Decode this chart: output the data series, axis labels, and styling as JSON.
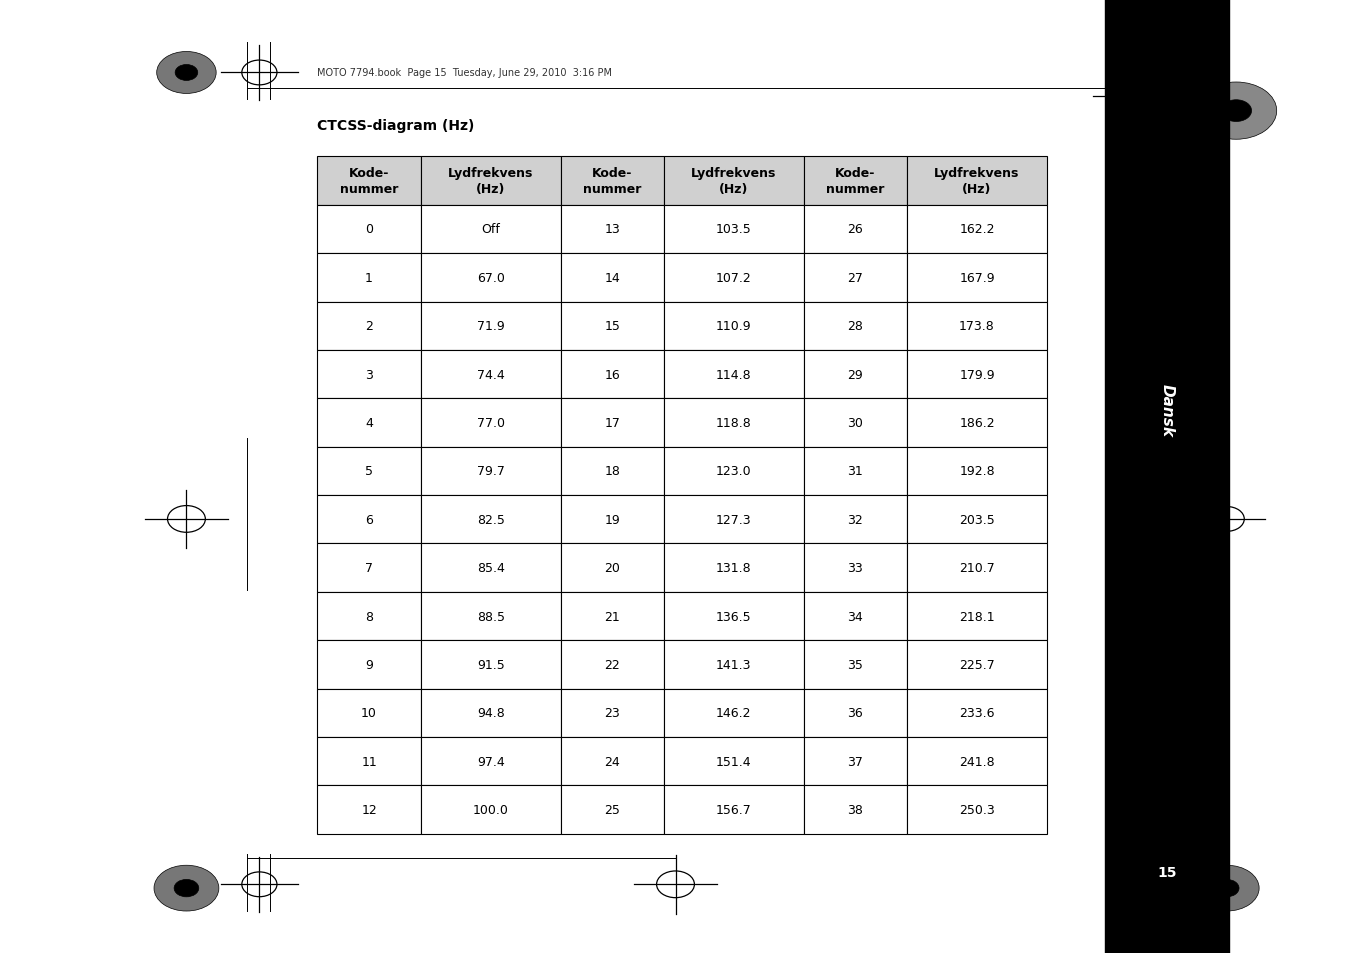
{
  "title": "CTCSS-diagram (Hz)",
  "header_line1": [
    "Kode-\nnummer",
    "Lydfrekvens\n(Hz)",
    "Kode-\nnummer",
    "Lydfrekvens\n(Hz)",
    "Kode-\nnummer",
    "Lydfrekvens\n(Hz)"
  ],
  "rows": [
    [
      "0",
      "Off",
      "13",
      "103.5",
      "26",
      "162.2"
    ],
    [
      "1",
      "67.0",
      "14",
      "107.2",
      "27",
      "167.9"
    ],
    [
      "2",
      "71.9",
      "15",
      "110.9",
      "28",
      "173.8"
    ],
    [
      "3",
      "74.4",
      "16",
      "114.8",
      "29",
      "179.9"
    ],
    [
      "4",
      "77.0",
      "17",
      "118.8",
      "30",
      "186.2"
    ],
    [
      "5",
      "79.7",
      "18",
      "123.0",
      "31",
      "192.8"
    ],
    [
      "6",
      "82.5",
      "19",
      "127.3",
      "32",
      "203.5"
    ],
    [
      "7",
      "85.4",
      "20",
      "131.8",
      "33",
      "210.7"
    ],
    [
      "8",
      "88.5",
      "21",
      "136.5",
      "34",
      "218.1"
    ],
    [
      "9",
      "91.5",
      "22",
      "141.3",
      "35",
      "225.7"
    ],
    [
      "10",
      "94.8",
      "23",
      "146.2",
      "36",
      "233.6"
    ],
    [
      "11",
      "97.4",
      "24",
      "151.4",
      "37",
      "241.8"
    ],
    [
      "12",
      "100.0",
      "25",
      "156.7",
      "38",
      "250.3"
    ]
  ],
  "side_label": "Dansk",
  "page_number": "15",
  "header_text": "MOTO 7794.book  Page 15  Tuesday, June 29, 2010  3:16 PM",
  "bg_color": "#ffffff",
  "sidebar_color": "#000000",
  "table_border_color": "#000000",
  "header_bg_color": "#d0d0d0",
  "font_size_table": 9,
  "font_size_title": 10
}
